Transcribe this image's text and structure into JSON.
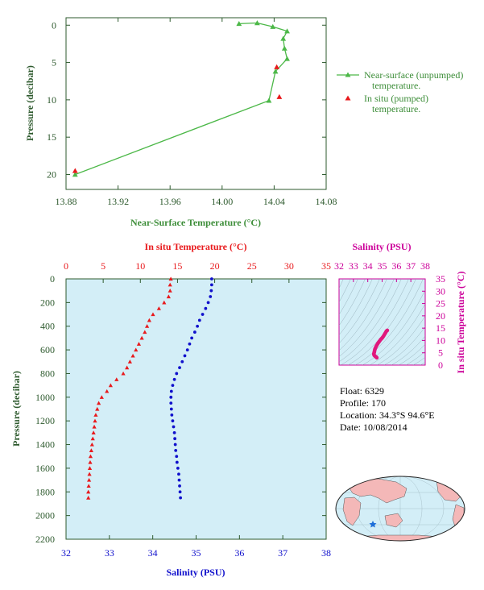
{
  "chart_data": [
    {
      "type": "line",
      "xlabel": "Near-Surface Temperature (°C)",
      "ylabel": "Pressure (decibar)",
      "xlim": [
        13.88,
        14.08
      ],
      "ylim": [
        22,
        -1
      ],
      "x_ticks": [
        "13.88",
        "13.92",
        "13.96",
        "14.00",
        "14.04",
        "14.08"
      ],
      "y_ticks": [
        "0",
        "5",
        "10",
        "15",
        "20"
      ],
      "series": [
        {
          "name": "Near-surface (unpumped) temperature.",
          "color": "#4CB848",
          "marker": "triangle",
          "points": [
            {
              "temperature": 14.013,
              "pressure": -0.2
            },
            {
              "temperature": 14.027,
              "pressure": -0.3
            },
            {
              "temperature": 14.039,
              "pressure": 0.2
            },
            {
              "temperature": 14.05,
              "pressure": 0.8
            },
            {
              "temperature": 14.047,
              "pressure": 1.8
            },
            {
              "temperature": 14.048,
              "pressure": 3.1
            },
            {
              "temperature": 14.05,
              "pressure": 4.5
            },
            {
              "temperature": 14.041,
              "pressure": 6.2
            },
            {
              "temperature": 14.036,
              "pressure": 10.1
            },
            {
              "temperature": 13.887,
              "pressure": 20.0
            }
          ]
        },
        {
          "name": "In situ (pumped) temperature.",
          "color": "#E8191C",
          "marker": "triangle",
          "points": [
            {
              "temperature": 14.042,
              "pressure": 5.6
            },
            {
              "temperature": 14.044,
              "pressure": 9.6
            },
            {
              "temperature": 13.887,
              "pressure": 19.5
            }
          ]
        }
      ]
    },
    {
      "type": "scatter",
      "xlabel_bottom": "Salinity (PSU)",
      "xlabel_top": "In situ Temperature (°C)",
      "ylabel": "Pressure (decibar)",
      "salinity_lim": [
        32,
        38
      ],
      "temperature_lim": [
        0,
        35
      ],
      "ylim": [
        2200,
        0
      ],
      "salinity_ticks": [
        "32",
        "33",
        "34",
        "35",
        "36",
        "37",
        "38"
      ],
      "temperature_ticks": [
        "0",
        "5",
        "10",
        "15",
        "20",
        "25",
        "30",
        "35"
      ],
      "y_ticks": [
        "0",
        "200",
        "400",
        "600",
        "800",
        "1000",
        "1200",
        "1400",
        "1600",
        "1800",
        "2000",
        "2200"
      ],
      "series": [
        {
          "name": "In situ Temperature",
          "color": "#E8191C",
          "marker": "triangle",
          "pressure": [
            0,
            50,
            100,
            150,
            200,
            250,
            300,
            350,
            400,
            450,
            500,
            550,
            600,
            650,
            700,
            750,
            800,
            850,
            900,
            950,
            1000,
            1050,
            1100,
            1150,
            1200,
            1250,
            1300,
            1350,
            1400,
            1450,
            1500,
            1550,
            1600,
            1650,
            1700,
            1750,
            1800,
            1850
          ],
          "values": [
            14.1,
            14.0,
            14.0,
            13.8,
            13.2,
            12.5,
            11.7,
            11.2,
            10.9,
            10.6,
            10.2,
            9.8,
            9.4,
            9.0,
            8.6,
            8.2,
            7.7,
            6.8,
            6.0,
            5.5,
            4.8,
            4.4,
            4.2,
            4.0,
            3.9,
            3.8,
            3.7,
            3.6,
            3.5,
            3.4,
            3.3,
            3.25,
            3.2,
            3.15,
            3.1,
            3.05,
            3.0,
            3.0
          ]
        },
        {
          "name": "Salinity",
          "color": "#1010CC",
          "marker": "dot",
          "pressure": [
            0,
            50,
            100,
            150,
            200,
            250,
            300,
            350,
            400,
            450,
            500,
            550,
            600,
            650,
            700,
            750,
            800,
            850,
            900,
            950,
            1000,
            1050,
            1100,
            1150,
            1200,
            1250,
            1300,
            1350,
            1400,
            1450,
            1500,
            1550,
            1600,
            1650,
            1700,
            1750,
            1800,
            1850
          ],
          "values": [
            35.36,
            35.36,
            35.35,
            35.33,
            35.28,
            35.22,
            35.15,
            35.08,
            35.03,
            34.97,
            34.9,
            34.85,
            34.8,
            34.74,
            34.68,
            34.62,
            34.55,
            34.5,
            34.46,
            34.43,
            34.42,
            34.42,
            34.43,
            34.44,
            34.46,
            34.48,
            34.5,
            34.51,
            34.52,
            34.53,
            34.55,
            34.56,
            34.58,
            34.6,
            34.61,
            34.62,
            34.63,
            34.64
          ]
        }
      ]
    },
    {
      "type": "scatter",
      "xlabel": "Salinity (PSU)",
      "ylabel": "In situ Temperature (°C)",
      "xlim": [
        32,
        38
      ],
      "ylim": [
        0,
        35
      ],
      "x_ticks": [
        "32",
        "33",
        "34",
        "35",
        "36",
        "37",
        "38"
      ],
      "y_ticks": [
        "0",
        "5",
        "10",
        "15",
        "20",
        "25",
        "30",
        "35"
      ],
      "series": [
        {
          "name": "T-S",
          "color": "#E0197D",
          "salinity": [
            35.36,
            35.3,
            35.2,
            35.1,
            35.0,
            34.9,
            34.8,
            34.7,
            34.6,
            34.5,
            34.45,
            34.42,
            34.45,
            34.5,
            34.55,
            34.6,
            34.63
          ],
          "temperature": [
            14.1,
            13.8,
            12.8,
            11.8,
            11.0,
            10.4,
            9.6,
            8.8,
            7.8,
            6.5,
            5.2,
            4.5,
            4.0,
            3.7,
            3.4,
            3.2,
            3.0
          ]
        }
      ]
    }
  ],
  "legend": {
    "near_surface": "Near-surface (unpumped)",
    "near_surface_2": "temperature.",
    "in_situ": "In situ (pumped)",
    "in_situ_2": "temperature."
  },
  "info": {
    "float": "Float: 6329",
    "profile": "Profile: 170",
    "location": "Location: 34.3°S 94.6°E",
    "date": "Date: 10/08/2014"
  },
  "colors": {
    "axis": "#2E5A2E",
    "plot_bg": "#D3EEF7",
    "ts_axis": "#CC0099",
    "temp_axis": "#E8191C",
    "sal_axis": "#1010CC",
    "land": "#F4B8B8",
    "ocean": "#D3EEF7",
    "float_marker": "#1E6FD9"
  }
}
